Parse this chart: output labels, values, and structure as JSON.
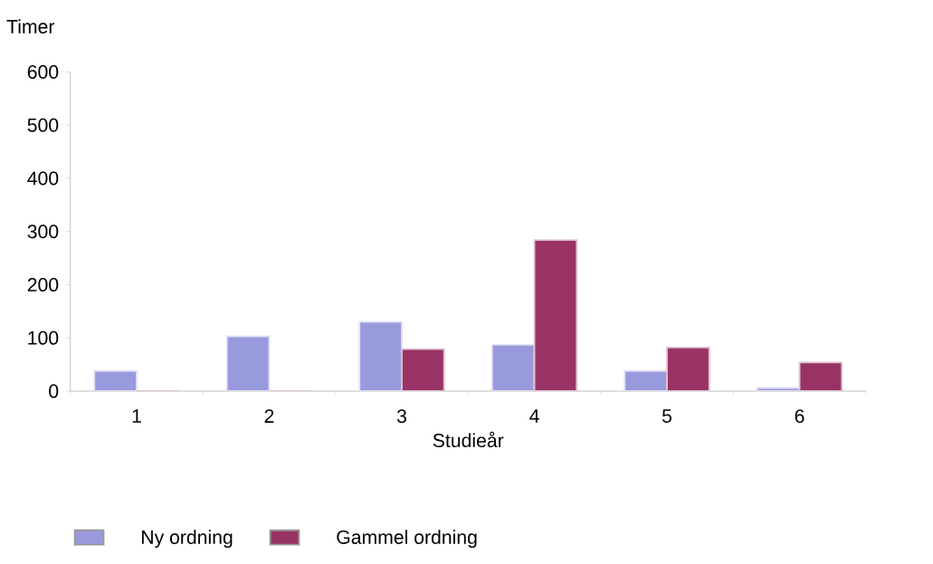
{
  "chart_data": {
    "type": "bar",
    "xlabel": "Studieår",
    "ylabel": "Timer",
    "categories": [
      "1",
      "2",
      "3",
      "4",
      "5",
      "6"
    ],
    "series": [
      {
        "name": "Ny ordning",
        "color": "#9999dd",
        "values": [
          38,
          103,
          130,
          87,
          38,
          6
        ]
      },
      {
        "name": "Gammel ordning",
        "color": "#993366",
        "values": [
          0,
          0,
          79,
          284,
          82,
          54
        ]
      }
    ],
    "ylim": [
      0,
      600
    ],
    "yticks": [
      0,
      100,
      200,
      300,
      400,
      500,
      600
    ],
    "legend": "bottom left"
  }
}
